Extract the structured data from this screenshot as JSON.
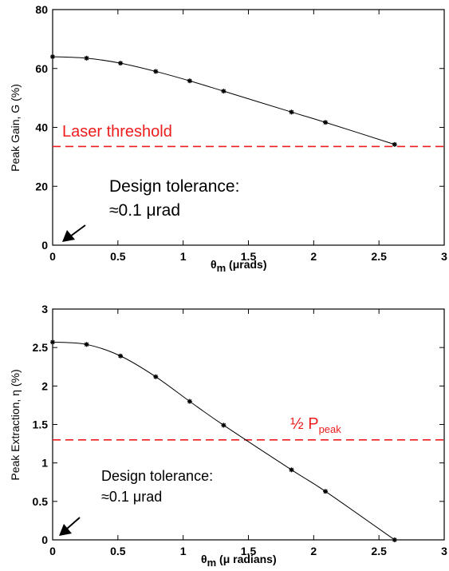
{
  "colors": {
    "threshold_line": "#ee1c1c",
    "curve": "#000000",
    "axes": "#000000"
  },
  "chart_data": [
    {
      "type": "line",
      "xlabel_main": "θ",
      "xlabel_sub": "m",
      "xlabel_tail": " (μrads)",
      "ylabel": "Peak Gain, G (%)",
      "xlim": [
        0,
        3
      ],
      "ylim": [
        0,
        80
      ],
      "xticks": [
        "0",
        "0.5",
        "1",
        "1.5",
        "2",
        "2.5",
        "3"
      ],
      "yticks": [
        "0",
        "20",
        "40",
        "60",
        "80"
      ],
      "x": [
        0,
        0.26,
        0.52,
        0.79,
        1.05,
        1.31,
        1.83,
        2.09,
        2.62
      ],
      "y": [
        64,
        63.5,
        61.8,
        59,
        55.8,
        52.3,
        45.2,
        41.7,
        34.2
      ],
      "threshold": {
        "y": 33.5,
        "label": "Laser threshold"
      },
      "annotation": {
        "line1": "Design tolerance:",
        "line2": "≈0.1 μrad"
      },
      "grid": false
    },
    {
      "type": "line",
      "xlabel_main": "θ",
      "xlabel_sub": "m",
      "xlabel_tail": " (μ radians)",
      "ylabel": "Peak Extraction, η (%)",
      "xlim": [
        0,
        3
      ],
      "ylim": [
        0,
        3
      ],
      "xticks": [
        "0",
        "0.5",
        "1",
        "1.5",
        "2",
        "2.5",
        "3"
      ],
      "yticks": [
        "0",
        "0.5",
        "1",
        "1.5",
        "2",
        "2.5",
        "3"
      ],
      "x": [
        0,
        0.26,
        0.52,
        0.79,
        1.05,
        1.31,
        1.83,
        2.09,
        2.62
      ],
      "y": [
        2.57,
        2.54,
        2.39,
        2.12,
        1.8,
        1.49,
        0.91,
        0.63,
        0.0
      ],
      "threshold": {
        "y": 1.3,
        "label_main": "½ P",
        "label_sub": "peak"
      },
      "annotation": {
        "line1": "Design tolerance:",
        "line2": "≈0.1 μrad"
      },
      "grid": false
    }
  ]
}
